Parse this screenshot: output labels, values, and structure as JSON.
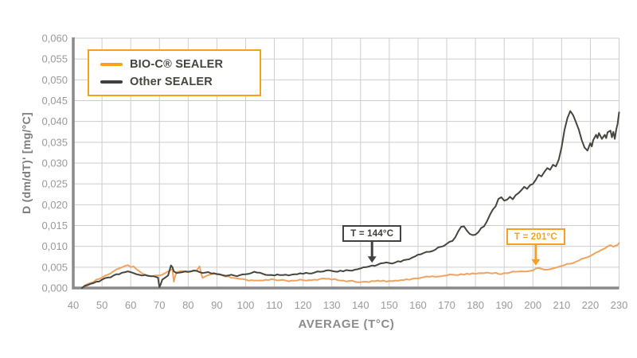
{
  "colors": {
    "accent_orange": "#f7a11a",
    "curve_orange": "#f0a361",
    "curve_dark": "#45473f",
    "grid": "#cdcdcd",
    "axis": "#8a8a8a",
    "tick_text": "#9a9a9a",
    "legend_text": "#44463e"
  },
  "legend": {
    "items": [
      {
        "label": "BIO-C® SEALER",
        "swatch_color": "#f8a11d"
      },
      {
        "label": "Other SEALER",
        "swatch_color": "#3f423c"
      }
    ]
  },
  "chart_data": {
    "type": "line",
    "title": "",
    "xlabel": "AVERAGE (T°C)",
    "ylabel": "D (dm/dT)' [mg/°C]",
    "xlim": [
      40,
      230
    ],
    "xtick_step": 10,
    "ylim": [
      0,
      0.06
    ],
    "ytick_step": 0.005,
    "decimal_separator": ",",
    "grid": true,
    "legend_position": "top-left",
    "annotations": [
      {
        "label": "T = 144°C",
        "t": 144,
        "series": 1,
        "color": "#3f423e",
        "text_color": "#3c3e39"
      },
      {
        "label": "T = 201°C",
        "t": 201,
        "series": 0,
        "color": "#f5a01e",
        "text_color": "#f5a01e"
      }
    ],
    "series": [
      {
        "name": "BIO-C® SEALER",
        "color": "#f0a361",
        "points": [
          [
            43,
            0
          ],
          [
            44,
            0.0006
          ],
          [
            46,
            0.0012
          ],
          [
            48,
            0.002
          ],
          [
            50,
            0.0025
          ],
          [
            52,
            0.0032
          ],
          [
            54,
            0.004
          ],
          [
            56,
            0.0047
          ],
          [
            57,
            0.005
          ],
          [
            58,
            0.0053
          ],
          [
            59,
            0.0055
          ],
          [
            60,
            0.005
          ],
          [
            61,
            0.0052
          ],
          [
            62,
            0.0045
          ],
          [
            63,
            0.004
          ],
          [
            64,
            0.0035
          ],
          [
            65,
            0.0032
          ],
          [
            66,
            0.003
          ],
          [
            68,
            0.0029
          ],
          [
            70,
            0.003
          ],
          [
            71,
            0.0032
          ],
          [
            72,
            0.0036
          ],
          [
            73,
            0.004
          ],
          [
            74,
            0.0044
          ],
          [
            74.5,
            0.0045
          ],
          [
            75,
            0.0015
          ],
          [
            75.5,
            0.003
          ],
          [
            76,
            0.0038
          ],
          [
            77,
            0.004
          ],
          [
            78,
            0.0041
          ],
          [
            79,
            0.0039
          ],
          [
            80,
            0.0038
          ],
          [
            81,
            0.004
          ],
          [
            82,
            0.0041
          ],
          [
            83,
            0.0042
          ],
          [
            84,
            0.0052
          ],
          [
            84.5,
            0.0035
          ],
          [
            85,
            0.0024
          ],
          [
            86,
            0.0028
          ],
          [
            87,
            0.0031
          ],
          [
            88,
            0.0033
          ],
          [
            89,
            0.0034
          ],
          [
            90,
            0.0035
          ],
          [
            91,
            0.0032
          ],
          [
            92,
            0.003
          ],
          [
            94,
            0.0028
          ],
          [
            96,
            0.0024
          ],
          [
            98,
            0.0022
          ],
          [
            100,
            0.002
          ],
          [
            102,
            0.0019
          ],
          [
            104,
            0.0018
          ],
          [
            106,
            0.0018
          ],
          [
            108,
            0.0019
          ],
          [
            110,
            0.002
          ],
          [
            112,
            0.0019
          ],
          [
            114,
            0.0018
          ],
          [
            116,
            0.0018
          ],
          [
            118,
            0.0018
          ],
          [
            120,
            0.0019
          ],
          [
            122,
            0.0019
          ],
          [
            124,
            0.002
          ],
          [
            126,
            0.0022
          ],
          [
            127,
            0.0023
          ],
          [
            128,
            0.0022
          ],
          [
            130,
            0.002
          ],
          [
            132,
            0.0019
          ],
          [
            134,
            0.0018
          ],
          [
            136,
            0.0017
          ],
          [
            138,
            0.0015
          ],
          [
            140,
            0.0014
          ],
          [
            142,
            0.0015
          ],
          [
            144,
            0.0017
          ],
          [
            146,
            0.0018
          ],
          [
            148,
            0.0018
          ],
          [
            150,
            0.0017
          ],
          [
            152,
            0.0018
          ],
          [
            154,
            0.0019
          ],
          [
            156,
            0.0021
          ],
          [
            158,
            0.0022
          ],
          [
            160,
            0.0023
          ],
          [
            162,
            0.0026
          ],
          [
            164,
            0.0027
          ],
          [
            166,
            0.0027
          ],
          [
            168,
            0.0028
          ],
          [
            170,
            0.003
          ],
          [
            172,
            0.0032
          ],
          [
            174,
            0.0031
          ],
          [
            176,
            0.0032
          ],
          [
            178,
            0.0033
          ],
          [
            180,
            0.0034
          ],
          [
            182,
            0.0036
          ],
          [
            184,
            0.0037
          ],
          [
            185,
            0.0036
          ],
          [
            186,
            0.0035
          ],
          [
            188,
            0.0034
          ],
          [
            190,
            0.0036
          ],
          [
            192,
            0.0037
          ],
          [
            194,
            0.0039
          ],
          [
            196,
            0.004
          ],
          [
            198,
            0.004
          ],
          [
            199,
            0.0041
          ],
          [
            200,
            0.0042
          ],
          [
            201,
            0.0047
          ],
          [
            202,
            0.0048
          ],
          [
            203,
            0.0046
          ],
          [
            204,
            0.0044
          ],
          [
            205,
            0.0044
          ],
          [
            206,
            0.0045
          ],
          [
            207,
            0.0047
          ],
          [
            208,
            0.0049
          ],
          [
            209,
            0.0051
          ],
          [
            210,
            0.0053
          ],
          [
            211,
            0.0055
          ],
          [
            212,
            0.0058
          ],
          [
            213,
            0.0058
          ],
          [
            214,
            0.006
          ],
          [
            215,
            0.0063
          ],
          [
            216,
            0.0066
          ],
          [
            217,
            0.007
          ],
          [
            218,
            0.0072
          ],
          [
            219,
            0.0074
          ],
          [
            220,
            0.0077
          ],
          [
            221,
            0.0081
          ],
          [
            222,
            0.0085
          ],
          [
            223,
            0.0088
          ],
          [
            224,
            0.0092
          ],
          [
            225,
            0.0095
          ],
          [
            226,
            0.01
          ],
          [
            227,
            0.0103
          ],
          [
            227.5,
            0.0101
          ],
          [
            228,
            0.0099
          ],
          [
            228.5,
            0.0101
          ],
          [
            229,
            0.0102
          ],
          [
            229.5,
            0.0104
          ],
          [
            230,
            0.0108
          ]
        ]
      },
      {
        "name": "Other SEALER",
        "color": "#45473f",
        "points": [
          [
            43,
            0
          ],
          [
            44,
            0.0005
          ],
          [
            46,
            0.001
          ],
          [
            48,
            0.0015
          ],
          [
            50,
            0.002
          ],
          [
            52,
            0.0025
          ],
          [
            54,
            0.003
          ],
          [
            56,
            0.0033
          ],
          [
            58,
            0.0038
          ],
          [
            59,
            0.004
          ],
          [
            60,
            0.0038
          ],
          [
            62,
            0.0033
          ],
          [
            64,
            0.003
          ],
          [
            66,
            0.0029
          ],
          [
            68,
            0.0028
          ],
          [
            69.5,
            0.0025
          ],
          [
            70,
            0.0002
          ],
          [
            70.5,
            0.001
          ],
          [
            71,
            0.002
          ],
          [
            72,
            0.0025
          ],
          [
            73,
            0.003
          ],
          [
            74,
            0.0054
          ],
          [
            74.5,
            0.005
          ],
          [
            75,
            0.004
          ],
          [
            76,
            0.0036
          ],
          [
            77,
            0.0037
          ],
          [
            78,
            0.0038
          ],
          [
            79,
            0.004
          ],
          [
            80,
            0.0039
          ],
          [
            81,
            0.004
          ],
          [
            82,
            0.0042
          ],
          [
            83,
            0.0041
          ],
          [
            84,
            0.0038
          ],
          [
            85,
            0.0036
          ],
          [
            86,
            0.0037
          ],
          [
            88,
            0.0035
          ],
          [
            90,
            0.0033
          ],
          [
            92,
            0.0031
          ],
          [
            94,
            0.003
          ],
          [
            96,
            0.003
          ],
          [
            98,
            0.0031
          ],
          [
            100,
            0.0033
          ],
          [
            102,
            0.0036
          ],
          [
            103,
            0.0039
          ],
          [
            104,
            0.0037
          ],
          [
            106,
            0.0034
          ],
          [
            108,
            0.0031
          ],
          [
            110,
            0.003
          ],
          [
            112,
            0.0031
          ],
          [
            114,
            0.0032
          ],
          [
            116,
            0.0032
          ],
          [
            118,
            0.0033
          ],
          [
            120,
            0.0034
          ],
          [
            122,
            0.0035
          ],
          [
            124,
            0.0037
          ],
          [
            126,
            0.0039
          ],
          [
            128,
            0.0042
          ],
          [
            130,
            0.0041
          ],
          [
            132,
            0.0039
          ],
          [
            134,
            0.004
          ],
          [
            136,
            0.0042
          ],
          [
            138,
            0.0044
          ],
          [
            140,
            0.0047
          ],
          [
            142,
            0.005
          ],
          [
            144,
            0.0054
          ],
          [
            146,
            0.0056
          ],
          [
            148,
            0.006
          ],
          [
            150,
            0.006
          ],
          [
            152,
            0.0061
          ],
          [
            154,
            0.0063
          ],
          [
            156,
            0.0068
          ],
          [
            158,
            0.0073
          ],
          [
            160,
            0.008
          ],
          [
            162,
            0.0084
          ],
          [
            164,
            0.0087
          ],
          [
            166,
            0.0092
          ],
          [
            168,
            0.0099
          ],
          [
            170,
            0.0106
          ],
          [
            171,
            0.0111
          ],
          [
            172,
            0.0113
          ],
          [
            173,
            0.0122
          ],
          [
            174,
            0.0136
          ],
          [
            175,
            0.0147
          ],
          [
            176,
            0.0148
          ],
          [
            177,
            0.0138
          ],
          [
            178,
            0.013
          ],
          [
            179,
            0.0127
          ],
          [
            180,
            0.0128
          ],
          [
            181,
            0.0134
          ],
          [
            182,
            0.0144
          ],
          [
            183,
            0.0148
          ],
          [
            184,
            0.016
          ],
          [
            185,
            0.0175
          ],
          [
            186,
            0.0188
          ],
          [
            187,
            0.0196
          ],
          [
            188,
            0.0214
          ],
          [
            189,
            0.0218
          ],
          [
            190,
            0.021
          ],
          [
            191,
            0.0212
          ],
          [
            192,
            0.0219
          ],
          [
            193,
            0.0213
          ],
          [
            194,
            0.0223
          ],
          [
            195,
            0.0228
          ],
          [
            196,
            0.0235
          ],
          [
            197,
            0.0243
          ],
          [
            198,
            0.0238
          ],
          [
            199,
            0.0247
          ],
          [
            200,
            0.025
          ],
          [
            201,
            0.026
          ],
          [
            202,
            0.0272
          ],
          [
            203,
            0.0268
          ],
          [
            204,
            0.0279
          ],
          [
            205,
            0.0288
          ],
          [
            206,
            0.0284
          ],
          [
            207,
            0.0296
          ],
          [
            208,
            0.0292
          ],
          [
            209,
            0.0308
          ],
          [
            210,
            0.0338
          ],
          [
            211,
            0.038
          ],
          [
            212,
            0.0408
          ],
          [
            213,
            0.0425
          ],
          [
            213.5,
            0.042
          ],
          [
            214,
            0.0415
          ],
          [
            215,
            0.0398
          ],
          [
            216,
            0.038
          ],
          [
            217,
            0.0355
          ],
          [
            218,
            0.0337
          ],
          [
            219,
            0.033
          ],
          [
            220,
            0.0348
          ],
          [
            220.5,
            0.034
          ],
          [
            221,
            0.0355
          ],
          [
            222,
            0.0368
          ],
          [
            222.5,
            0.036
          ],
          [
            223,
            0.0372
          ],
          [
            224,
            0.0358
          ],
          [
            225,
            0.0368
          ],
          [
            225.5,
            0.036
          ],
          [
            226,
            0.0374
          ],
          [
            227,
            0.0378
          ],
          [
            227.5,
            0.0362
          ],
          [
            228,
            0.0375
          ],
          [
            228.5,
            0.0358
          ],
          [
            229,
            0.038
          ],
          [
            229.5,
            0.0395
          ],
          [
            230,
            0.0422
          ]
        ]
      }
    ]
  }
}
